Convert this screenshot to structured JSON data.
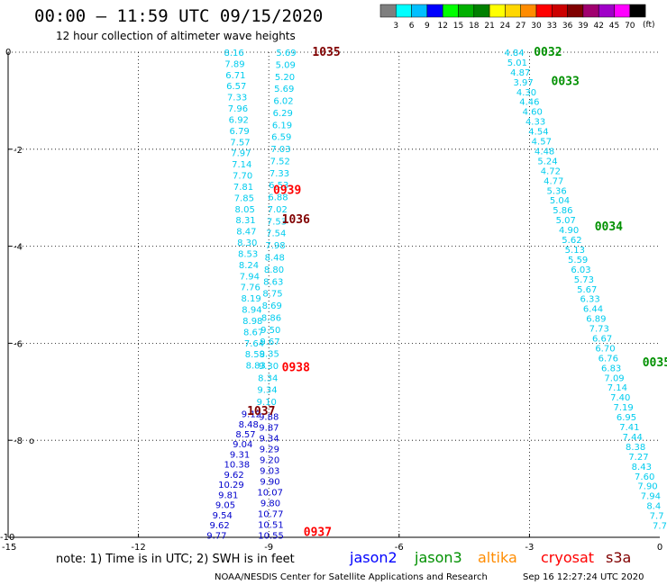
{
  "header": {
    "title": "00:00 – 11:59 UTC 09/15/2020",
    "subtitle": "12 hour collection of altimeter wave heights"
  },
  "colorbar": {
    "unit": "(ft)",
    "labels": [
      "3",
      "6",
      "9",
      "12",
      "15",
      "18",
      "21",
      "24",
      "27",
      "30",
      "33",
      "36",
      "39",
      "42",
      "45",
      "70"
    ],
    "colors": [
      "#7f7f7f",
      "#00ffff",
      "#00bfff",
      "#0000ff",
      "#00ff00",
      "#00b000",
      "#008000",
      "#ffff00",
      "#ffd700",
      "#ff8c00",
      "#ff0000",
      "#cc0000",
      "#800000",
      "#a0006f",
      "#a000c8",
      "#ff00ff",
      "#000000"
    ]
  },
  "satellites": [
    {
      "name": "jason2",
      "color": "#0000ff"
    },
    {
      "name": "jason3",
      "color": "#009000"
    },
    {
      "name": "altika",
      "color": "#ff8c00"
    },
    {
      "name": "cryosat",
      "color": "#ff0000"
    },
    {
      "name": "s3a",
      "color": "#800000"
    }
  ],
  "footer": {
    "note": "note: 1) Time is in UTC; 2) SWH is in feet",
    "credit": "NOAA/NESDIS Center for Satellite Applications and Research",
    "timestamp": "Sep 16 12:27:24 UTC 2020"
  },
  "chart_data": {
    "type": "scatter",
    "title": "00:00 – 11:59 UTC 09/15/2020",
    "subtitle": "12 hour collection of altimeter wave heights",
    "xlim": [
      -15,
      0
    ],
    "ylim": [
      -10,
      0
    ],
    "x_ticks": [
      "-15",
      "-12",
      "-9",
      "-6",
      "-3",
      "0"
    ],
    "y_ticks": [
      "0",
      "-2",
      "-4",
      "-6",
      "-8",
      "-10"
    ],
    "grid": true,
    "color_scale": "SWH (ft)",
    "time_labels": [
      {
        "time": "1035",
        "x": -8.0,
        "y": 0.0,
        "color": "#800000"
      },
      {
        "time": "0939",
        "x": -8.9,
        "y": -2.85,
        "color": "#ff0000"
      },
      {
        "time": "1036",
        "x": -8.7,
        "y": -3.45,
        "color": "#800000"
      },
      {
        "time": "0938",
        "x": -8.7,
        "y": -6.5,
        "color": "#ff0000"
      },
      {
        "time": "1037",
        "x": -9.5,
        "y": -7.4,
        "color": "#800000"
      },
      {
        "time": "0937",
        "x": -8.2,
        "y": -9.9,
        "color": "#ff0000"
      },
      {
        "time": "0032",
        "x": -2.9,
        "y": 0.0,
        "color": "#009000"
      },
      {
        "time": "0033",
        "x": -2.5,
        "y": -0.6,
        "color": "#009000"
      },
      {
        "time": "0034",
        "x": -1.5,
        "y": -3.6,
        "color": "#009000"
      },
      {
        "time": "0035",
        "x": -0.4,
        "y": -6.4,
        "color": "#009000"
      }
    ],
    "series": [
      {
        "name": "track-a",
        "color": "#00ccee",
        "x0": -9.8,
        "x1": -9.3,
        "values": [
          "8.16",
          "7.89",
          "6.71",
          "6.57",
          "7.33",
          "7.96",
          "6.92",
          "6.79",
          "7.57",
          "7.97",
          "7.14",
          "7.70",
          "7.81",
          "7.85",
          "8.05",
          "8.31",
          "8.47",
          "8.30",
          "8.53",
          "8.24",
          "7.94",
          "7.76",
          "8.19",
          "8.94",
          "8.98",
          "8.67",
          "7.64",
          "8.58",
          "8.83"
        ]
      },
      {
        "name": "track-a-south",
        "color": "#0000cc",
        "x0": -9.4,
        "x1": -10.2,
        "values": [
          "9.12",
          "8.48",
          "8.57",
          "9.04",
          "9.31",
          "10.38",
          "9.62",
          "10.29",
          "9.81",
          "9.05",
          "9.54",
          "9.62",
          "9.77"
        ]
      },
      {
        "name": "track-b",
        "color": "#00ccee",
        "x0": -8.6,
        "x1": -9.05,
        "values": [
          "5.69",
          "5.09",
          "5.20",
          "5.69",
          "6.02",
          "6.29",
          "6.19",
          "6.59",
          "7.03",
          "7.52",
          "7.33",
          "6.53",
          "6.88",
          "7.02",
          "7.53",
          "7.54",
          "7.98",
          "8.48",
          "8.80",
          "8.63",
          "8.75",
          "8.69",
          "8.86",
          "9.50",
          "9.67",
          "9.35",
          "9.30",
          "8.34",
          "9.34",
          "9.10"
        ]
      },
      {
        "name": "track-b-south",
        "color": "#0000cc",
        "x0": -9.0,
        "x1": -8.95,
        "values": [
          "9.88",
          "9.87",
          "9.34",
          "9.29",
          "9.20",
          "9.03",
          "9.90",
          "10.07",
          "9.80",
          "10.77",
          "10.51",
          "10.55"
        ]
      },
      {
        "name": "track-c",
        "color": "#00ccee",
        "x0": -3.35,
        "x1": 0.0,
        "values": [
          "4.84",
          "5.01",
          "4.87",
          "3.97",
          "4.30",
          "4.46",
          "4.60",
          "4.33",
          "4.54",
          "4.57",
          "4.48",
          "5.24",
          "4.72",
          "4.77",
          "5.36",
          "5.04",
          "5.86",
          "5.07",
          "4.90",
          "5.62",
          "5.13",
          "5.59",
          "6.03",
          "5.73",
          "5.67",
          "6.33",
          "6.44",
          "6.89",
          "7.73",
          "6.67",
          "6.70",
          "6.76",
          "6.83",
          "7.09",
          "7.14",
          "7.40",
          "7.19",
          "6.95",
          "7.41",
          "7.44",
          "8.38",
          "7.27",
          "8.43",
          "7.60",
          "7.90",
          "7.94",
          "8.4",
          "7.7",
          "7.7"
        ]
      }
    ]
  }
}
